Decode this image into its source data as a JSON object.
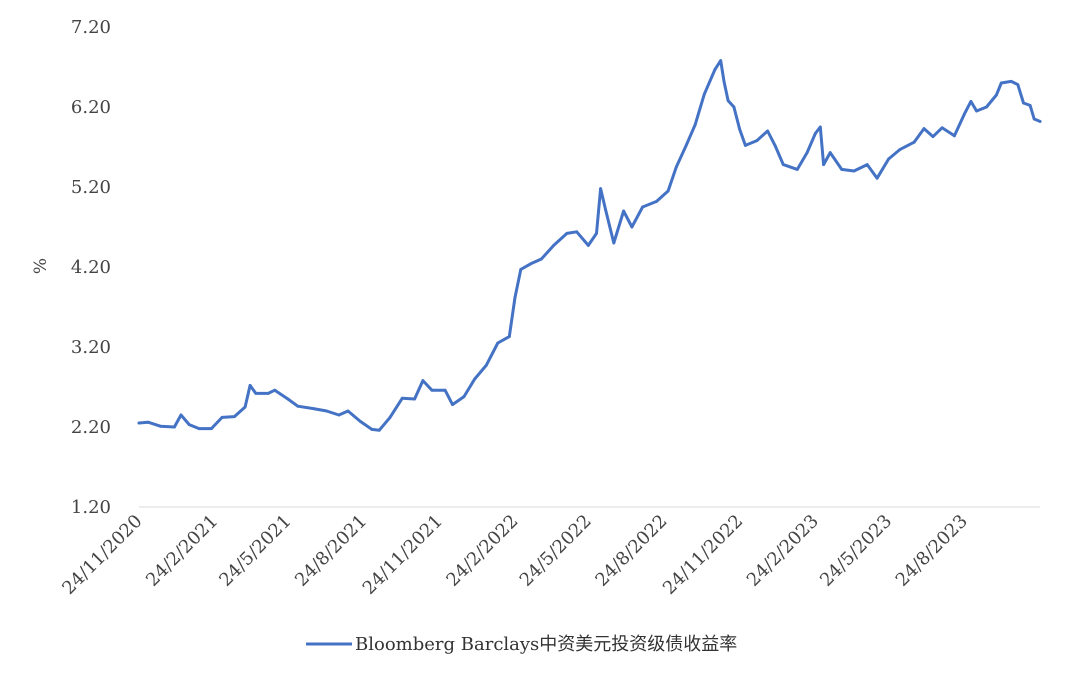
{
  "chart_data": {
    "type": "line",
    "title": "",
    "xlabel": "",
    "ylabel": "%",
    "ylim": [
      1.2,
      7.2
    ],
    "y_ticks": [
      "1.20",
      "2.20",
      "3.20",
      "4.20",
      "5.20",
      "6.20",
      "7.20"
    ],
    "x_range": [
      "2020-11-24",
      "2023-11-24"
    ],
    "x_ticks": [
      "24/11/2020",
      "24/2/2021",
      "24/5/2021",
      "24/8/2021",
      "24/11/2021",
      "24/2/2022",
      "24/5/2022",
      "24/8/2022",
      "24/11/2022",
      "24/2/2023",
      "24/5/2023",
      "24/8/2023"
    ],
    "grid": false,
    "legend_position": "bottom-center",
    "series": [
      {
        "name": "Bloomberg Barclays中资美元投资级债收益率",
        "color": "#4472C4",
        "points": [
          [
            "2020-11-24",
            2.25
          ],
          [
            "2020-12-05",
            2.26
          ],
          [
            "2020-12-20",
            2.21
          ],
          [
            "2021-01-06",
            2.2
          ],
          [
            "2021-01-14",
            2.35
          ],
          [
            "2021-01-24",
            2.23
          ],
          [
            "2021-02-05",
            2.18
          ],
          [
            "2021-02-20",
            2.18
          ],
          [
            "2021-03-05",
            2.32
          ],
          [
            "2021-03-20",
            2.33
          ],
          [
            "2021-04-02",
            2.45
          ],
          [
            "2021-04-08",
            2.72
          ],
          [
            "2021-04-15",
            2.62
          ],
          [
            "2021-04-30",
            2.62
          ],
          [
            "2021-05-08",
            2.66
          ],
          [
            "2021-05-24",
            2.55
          ],
          [
            "2021-06-05",
            2.46
          ],
          [
            "2021-06-24",
            2.43
          ],
          [
            "2021-07-10",
            2.4
          ],
          [
            "2021-07-25",
            2.35
          ],
          [
            "2021-08-05",
            2.4
          ],
          [
            "2021-08-20",
            2.27
          ],
          [
            "2021-09-03",
            2.17
          ],
          [
            "2021-09-12",
            2.16
          ],
          [
            "2021-09-25",
            2.32
          ],
          [
            "2021-10-10",
            2.56
          ],
          [
            "2021-10-25",
            2.55
          ],
          [
            "2021-11-04",
            2.78
          ],
          [
            "2021-11-15",
            2.66
          ],
          [
            "2021-12-01",
            2.66
          ],
          [
            "2021-12-10",
            2.48
          ],
          [
            "2021-12-24",
            2.58
          ],
          [
            "2022-01-06",
            2.8
          ],
          [
            "2022-01-20",
            2.97
          ],
          [
            "2022-02-03",
            3.25
          ],
          [
            "2022-02-17",
            3.33
          ],
          [
            "2022-02-24",
            3.82
          ],
          [
            "2022-03-03",
            4.17
          ],
          [
            "2022-03-15",
            4.24
          ],
          [
            "2022-03-28",
            4.3
          ],
          [
            "2022-04-12",
            4.47
          ],
          [
            "2022-04-28",
            4.62
          ],
          [
            "2022-05-10",
            4.64
          ],
          [
            "2022-05-24",
            4.47
          ],
          [
            "2022-06-03",
            4.62
          ],
          [
            "2022-06-08",
            5.18
          ],
          [
            "2022-06-14",
            4.92
          ],
          [
            "2022-06-24",
            4.5
          ],
          [
            "2022-07-06",
            4.9
          ],
          [
            "2022-07-16",
            4.7
          ],
          [
            "2022-07-29",
            4.95
          ],
          [
            "2022-08-15",
            5.02
          ],
          [
            "2022-08-29",
            5.15
          ],
          [
            "2022-09-08",
            5.45
          ],
          [
            "2022-09-20",
            5.72
          ],
          [
            "2022-10-01",
            5.98
          ],
          [
            "2022-10-12",
            6.36
          ],
          [
            "2022-10-25",
            6.67
          ],
          [
            "2022-11-01",
            6.78
          ],
          [
            "2022-11-05",
            6.52
          ],
          [
            "2022-11-10",
            6.28
          ],
          [
            "2022-11-17",
            6.2
          ],
          [
            "2022-11-24",
            5.92
          ],
          [
            "2022-12-01",
            5.72
          ],
          [
            "2022-12-15",
            5.78
          ],
          [
            "2022-12-28",
            5.9
          ],
          [
            "2023-01-06",
            5.72
          ],
          [
            "2023-01-16",
            5.48
          ],
          [
            "2023-02-02",
            5.42
          ],
          [
            "2023-02-14",
            5.63
          ],
          [
            "2023-02-24",
            5.87
          ],
          [
            "2023-03-02",
            5.95
          ],
          [
            "2023-03-06",
            5.48
          ],
          [
            "2023-03-14",
            5.63
          ],
          [
            "2023-03-28",
            5.42
          ],
          [
            "2023-04-12",
            5.4
          ],
          [
            "2023-04-28",
            5.48
          ],
          [
            "2023-05-10",
            5.31
          ],
          [
            "2023-05-24",
            5.55
          ],
          [
            "2023-06-07",
            5.67
          ],
          [
            "2023-06-24",
            5.76
          ],
          [
            "2023-07-06",
            5.93
          ],
          [
            "2023-07-17",
            5.83
          ],
          [
            "2023-07-28",
            5.94
          ],
          [
            "2023-08-12",
            5.84
          ],
          [
            "2023-08-24",
            6.11
          ],
          [
            "2023-09-01",
            6.27
          ],
          [
            "2023-09-08",
            6.15
          ],
          [
            "2023-09-20",
            6.2
          ],
          [
            "2023-10-02",
            6.35
          ],
          [
            "2023-10-08",
            6.5
          ],
          [
            "2023-10-20",
            6.52
          ],
          [
            "2023-10-28",
            6.48
          ],
          [
            "2023-11-04",
            6.25
          ],
          [
            "2023-11-12",
            6.22
          ],
          [
            "2023-11-17",
            6.05
          ],
          [
            "2023-11-24",
            6.02
          ]
        ]
      }
    ]
  }
}
